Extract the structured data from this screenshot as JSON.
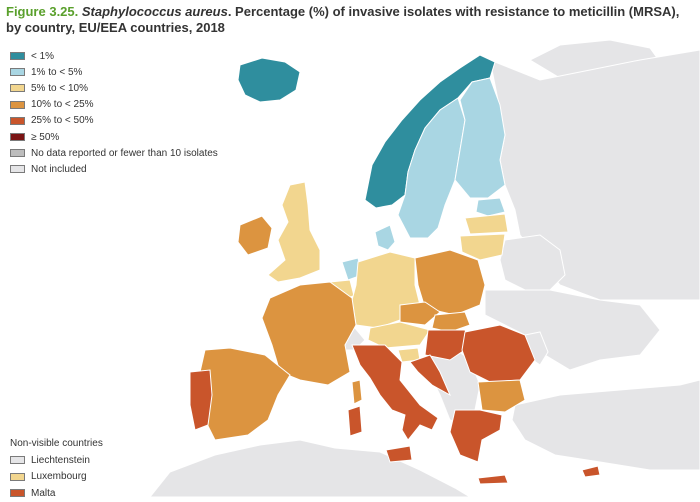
{
  "title": {
    "figure": "Figure 3.25.",
    "species": "Staphylococcus aureus",
    "rest": ". Percentage (%) of invasive isolates with resistance to meticillin (MRSA), by country, EU/EEA countries, 2018"
  },
  "colors": {
    "lt1": "#2f8e9e",
    "1to5": "#a9d6e3",
    "5to10": "#f2d68f",
    "10to25": "#dc9440",
    "25to50": "#c9552b",
    "ge50": "#7a1414",
    "nodata": "#bdbdbd",
    "notincluded": "#e5e5e7",
    "sea": "#ffffff",
    "border": "#ffffff"
  },
  "legend": [
    {
      "label": "< 1%",
      "class": "lt1"
    },
    {
      "label": "1% to < 5%",
      "class": "1to5"
    },
    {
      "label": "5% to < 10%",
      "class": "5to10"
    },
    {
      "label": "10% to < 25%",
      "class": "10to25"
    },
    {
      "label": "25% to < 50%",
      "class": "25to50"
    },
    {
      "label": "≥ 50%",
      "class": "ge50"
    },
    {
      "label": "No data reported or fewer than 10 isolates",
      "class": "nodata"
    },
    {
      "label": "Not included",
      "class": "notincluded"
    }
  ],
  "non_visible": {
    "title": "Non-visible countries",
    "items": [
      {
        "label": "Liechtenstein",
        "class": "notincluded"
      },
      {
        "label": "Luxembourg",
        "class": "5to10"
      },
      {
        "label": "Malta",
        "class": "25to50"
      }
    ]
  },
  "regions": [
    {
      "name": "iceland",
      "class": "lt1"
    },
    {
      "name": "norway",
      "class": "lt1"
    },
    {
      "name": "sweden",
      "class": "1to5"
    },
    {
      "name": "finland",
      "class": "1to5"
    },
    {
      "name": "estonia",
      "class": "1to5"
    },
    {
      "name": "latvia",
      "class": "5to10"
    },
    {
      "name": "lithuania",
      "class": "5to10"
    },
    {
      "name": "denmark",
      "class": "1to5"
    },
    {
      "name": "netherlands",
      "class": "1to5"
    },
    {
      "name": "united-kingdom",
      "class": "5to10"
    },
    {
      "name": "ireland",
      "class": "10to25"
    },
    {
      "name": "belgium",
      "class": "5to10"
    },
    {
      "name": "germany",
      "class": "5to10"
    },
    {
      "name": "poland",
      "class": "10to25"
    },
    {
      "name": "czechia",
      "class": "10to25"
    },
    {
      "name": "slovakia",
      "class": "10to25"
    },
    {
      "name": "austria",
      "class": "5to10"
    },
    {
      "name": "hungary",
      "class": "25to50"
    },
    {
      "name": "slovenia",
      "class": "5to10"
    },
    {
      "name": "croatia",
      "class": "25to50"
    },
    {
      "name": "france",
      "class": "10to25"
    },
    {
      "name": "spain",
      "class": "10to25"
    },
    {
      "name": "portugal",
      "class": "25to50"
    },
    {
      "name": "italy",
      "class": "25to50"
    },
    {
      "name": "sardinia",
      "class": "25to50"
    },
    {
      "name": "sicily",
      "class": "25to50"
    },
    {
      "name": "corsica",
      "class": "10to25"
    },
    {
      "name": "romania",
      "class": "25to50"
    },
    {
      "name": "bulgaria",
      "class": "10to25"
    },
    {
      "name": "greece",
      "class": "25to50"
    },
    {
      "name": "crete",
      "class": "25to50"
    },
    {
      "name": "cyprus",
      "class": "25to50"
    },
    {
      "name": "switzerland",
      "class": "notincluded"
    },
    {
      "name": "russia",
      "class": "notincluded"
    },
    {
      "name": "belarus",
      "class": "notincluded"
    },
    {
      "name": "ukraine",
      "class": "notincluded"
    },
    {
      "name": "moldova",
      "class": "notincluded"
    },
    {
      "name": "balkans",
      "class": "notincluded"
    },
    {
      "name": "turkey",
      "class": "notincluded"
    },
    {
      "name": "north-africa",
      "class": "notincluded"
    },
    {
      "name": "svalbard",
      "class": "notincluded"
    }
  ]
}
